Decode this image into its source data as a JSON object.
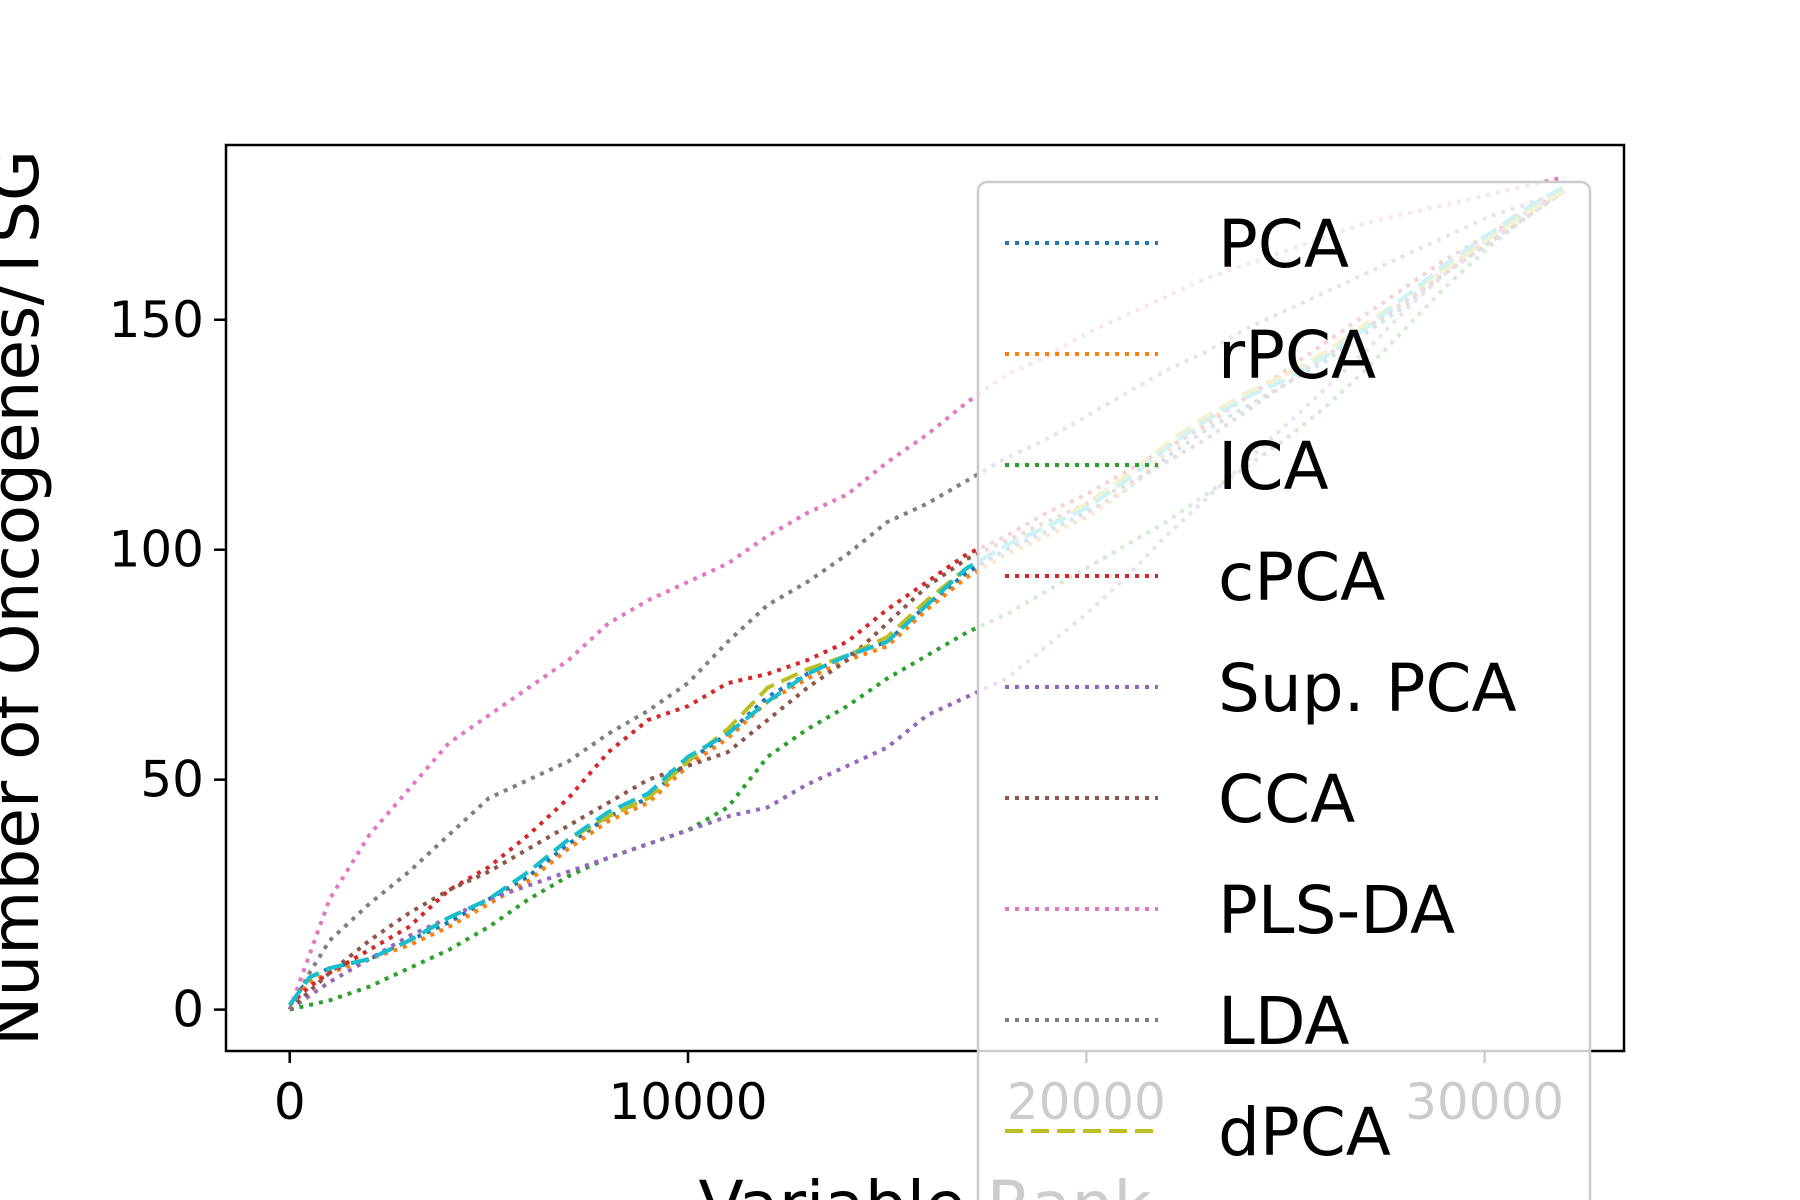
{
  "chart_data": {
    "type": "line",
    "title": "",
    "xlabel": "Variable Rank",
    "ylabel": "Number of Oncogenes/TSG",
    "xlim": [
      -1600,
      33500
    ],
    "ylim": [
      -9,
      188
    ],
    "xticks": [
      0,
      10000,
      20000,
      30000
    ],
    "yticks": [
      0,
      50,
      100,
      150
    ],
    "xtick_labels": [
      "0",
      "10000",
      "20000",
      "30000"
    ],
    "ytick_labels": [
      "0",
      "50",
      "100",
      "150"
    ],
    "grid": false,
    "legend": {
      "position": "upper-right",
      "overlaps_plot": true
    },
    "series": [
      {
        "name": "PCA",
        "color": "#1f77b4",
        "style": "dotted",
        "x": [
          0,
          500,
          1000,
          2000,
          3000,
          4000,
          5000,
          6000,
          7000,
          8000,
          9000,
          10000,
          11000,
          12000,
          13000,
          14000,
          15000,
          16000,
          17000,
          18000,
          19000,
          20000,
          21000,
          22000,
          23000,
          24000,
          25000,
          26000,
          27000,
          28000,
          29000,
          30000,
          31000,
          32000
        ],
        "y": [
          1,
          7,
          9,
          11,
          15,
          19,
          24,
          29,
          36,
          42,
          46,
          54,
          60,
          68,
          73,
          77,
          80,
          88,
          95,
          100,
          104,
          108,
          113,
          120,
          126,
          131,
          136,
          141,
          147,
          153,
          160,
          166,
          172,
          178
        ]
      },
      {
        "name": "rPCA",
        "color": "#ff7f0e",
        "style": "dotted",
        "x": [
          0,
          500,
          1000,
          2000,
          3000,
          4000,
          5000,
          6000,
          7000,
          8000,
          9000,
          10000,
          11000,
          12000,
          13000,
          14000,
          15000,
          16000,
          17000,
          18000,
          19000,
          20000,
          21000,
          22000,
          23000,
          24000,
          25000,
          26000,
          27000,
          28000,
          29000,
          30000,
          31000,
          32000
        ],
        "y": [
          1,
          6,
          8,
          11,
          14,
          18,
          23,
          28,
          35,
          41,
          45,
          53,
          59,
          67,
          72,
          76,
          79,
          87,
          94,
          99,
          103,
          107,
          113,
          121,
          128,
          133,
          138,
          142,
          148,
          154,
          161,
          167,
          173,
          179
        ]
      },
      {
        "name": "ICA",
        "color": "#2ca02c",
        "style": "dotted",
        "x": [
          0,
          500,
          1000,
          2000,
          3000,
          4000,
          5000,
          6000,
          7000,
          8000,
          9000,
          10000,
          11000,
          12000,
          13000,
          14000,
          15000,
          16000,
          17000,
          18000,
          19000,
          20000,
          21000,
          22000,
          23000,
          24000,
          25000,
          26000,
          27000,
          28000,
          29000,
          30000,
          31000,
          32000
        ],
        "y": [
          0,
          1,
          2,
          5,
          9,
          13,
          18,
          24,
          29,
          33,
          36,
          39,
          44,
          55,
          61,
          66,
          72,
          77,
          82,
          86,
          91,
          96,
          101,
          106,
          112,
          118,
          124,
          131,
          139,
          148,
          157,
          165,
          172,
          178
        ]
      },
      {
        "name": "cPCA",
        "color": "#d62728",
        "style": "dotted",
        "x": [
          0,
          500,
          1000,
          2000,
          3000,
          4000,
          5000,
          6000,
          7000,
          8000,
          9000,
          10000,
          11000,
          12000,
          13000,
          14000,
          15000,
          16000,
          17000,
          18000,
          19000,
          20000,
          21000,
          22000,
          23000,
          24000,
          25000,
          26000,
          27000,
          28000,
          29000,
          30000,
          31000,
          32000
        ],
        "y": [
          1,
          5,
          8,
          13,
          18,
          26,
          31,
          38,
          46,
          56,
          63,
          66,
          71,
          73,
          76,
          80,
          87,
          93,
          99,
          103,
          108,
          112,
          117,
          122,
          127,
          133,
          139,
          145,
          151,
          157,
          163,
          168,
          173,
          178
        ]
      },
      {
        "name": "Sup. PCA",
        "color": "#9467bd",
        "style": "dotted",
        "x": [
          0,
          500,
          1000,
          2000,
          3000,
          4000,
          5000,
          6000,
          7000,
          8000,
          9000,
          10000,
          11000,
          12000,
          13000,
          14000,
          15000,
          16000,
          17000,
          18000,
          19000,
          20000,
          21000,
          22000,
          23000,
          24000,
          25000,
          26000,
          27000,
          28000,
          29000,
          30000,
          31000,
          32000
        ],
        "y": [
          0,
          3,
          6,
          11,
          16,
          20,
          24,
          27,
          30,
          33,
          36,
          39,
          42,
          44,
          49,
          53,
          57,
          64,
          68,
          72,
          79,
          86,
          94,
          103,
          111,
          119,
          127,
          135,
          143,
          152,
          160,
          167,
          173,
          178
        ]
      },
      {
        "name": "CCA",
        "color": "#8c564b",
        "style": "dotted",
        "x": [
          0,
          500,
          1000,
          2000,
          3000,
          4000,
          5000,
          6000,
          7000,
          8000,
          9000,
          10000,
          11000,
          12000,
          13000,
          14000,
          15000,
          16000,
          17000,
          18000,
          19000,
          20000,
          21000,
          22000,
          23000,
          24000,
          25000,
          26000,
          27000,
          28000,
          29000,
          30000,
          31000,
          32000
        ],
        "y": [
          0,
          4,
          8,
          15,
          21,
          26,
          30,
          35,
          40,
          45,
          50,
          53,
          56,
          63,
          70,
          76,
          84,
          92,
          98,
          102,
          106,
          110,
          114,
          119,
          124,
          130,
          136,
          142,
          148,
          154,
          160,
          166,
          172,
          178
        ]
      },
      {
        "name": "PLS-DA",
        "color": "#e377c2",
        "style": "dotted",
        "x": [
          0,
          500,
          1000,
          2000,
          3000,
          4000,
          5000,
          6000,
          7000,
          8000,
          9000,
          10000,
          11000,
          12000,
          13000,
          14000,
          15000,
          16000,
          17000,
          18000,
          19000,
          20000,
          21000,
          22000,
          23000,
          24000,
          25000,
          26000,
          27000,
          28000,
          29000,
          30000,
          31000,
          32000
        ],
        "y": [
          0,
          12,
          24,
          38,
          48,
          58,
          64,
          70,
          76,
          84,
          89,
          93,
          97,
          103,
          108,
          112,
          119,
          125,
          132,
          138,
          142,
          147,
          151,
          155,
          159,
          162,
          165,
          168,
          171,
          173,
          175,
          177,
          179,
          181
        ]
      },
      {
        "name": "LDA",
        "color": "#7f7f7f",
        "style": "dotted",
        "x": [
          0,
          500,
          1000,
          2000,
          3000,
          4000,
          5000,
          6000,
          7000,
          8000,
          9000,
          10000,
          11000,
          12000,
          13000,
          14000,
          15000,
          16000,
          17000,
          18000,
          19000,
          20000,
          21000,
          22000,
          23000,
          24000,
          25000,
          26000,
          27000,
          28000,
          29000,
          30000,
          31000,
          32000
        ],
        "y": [
          0,
          8,
          15,
          23,
          30,
          38,
          46,
          50,
          54,
          60,
          65,
          71,
          80,
          88,
          93,
          99,
          106,
          110,
          115,
          120,
          124,
          129,
          134,
          139,
          143,
          148,
          152,
          156,
          160,
          164,
          168,
          172,
          175,
          178
        ]
      },
      {
        "name": "dPCA",
        "color": "#bcbd22",
        "style": "dashed",
        "x": [
          0,
          500,
          1000,
          2000,
          3000,
          4000,
          5000,
          6000,
          7000,
          8000,
          9000,
          10000,
          11000,
          12000,
          13000,
          14000,
          15000,
          16000,
          17000,
          18000,
          19000,
          20000,
          21000,
          22000,
          23000,
          24000,
          25000,
          26000,
          27000,
          28000,
          29000,
          30000,
          31000,
          32000
        ],
        "y": [
          1,
          7,
          9,
          11,
          15,
          20,
          24,
          30,
          37,
          42,
          46,
          54,
          61,
          70,
          74,
          77,
          81,
          89,
          96,
          101,
          105,
          110,
          116,
          123,
          129,
          134,
          138,
          143,
          149,
          155,
          161,
          167,
          173,
          178
        ]
      },
      {
        "name": "",
        "color": "#17becf",
        "style": "dashed",
        "x": [
          0,
          500,
          1000,
          2000,
          3000,
          4000,
          5000,
          6000,
          7000,
          8000,
          9000,
          10000,
          11000,
          12000,
          13000,
          14000,
          15000,
          16000,
          17000,
          18000,
          19000,
          20000,
          21000,
          22000,
          23000,
          24000,
          25000,
          26000,
          27000,
          28000,
          29000,
          30000,
          31000,
          32000
        ],
        "y": [
          1,
          7,
          9,
          11,
          15,
          20,
          24,
          30,
          37,
          43,
          47,
          55,
          60,
          67,
          73,
          77,
          80,
          88,
          96,
          101,
          105,
          109,
          115,
          122,
          128,
          133,
          137,
          142,
          148,
          155,
          162,
          168,
          174,
          179
        ]
      }
    ]
  }
}
